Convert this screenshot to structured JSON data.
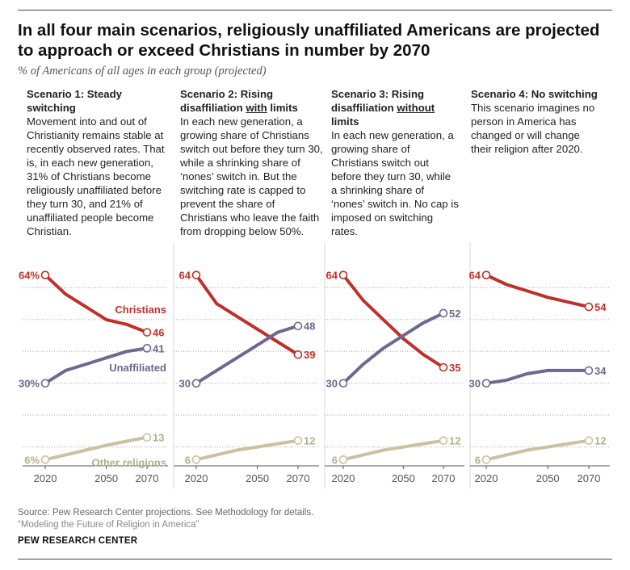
{
  "title": "In all four main scenarios, religiously unaffiliated Americans are projected to approach or exceed Christians in number by 2070",
  "subtitle": "% of Americans of all ages in each group (projected)",
  "scenarios": [
    {
      "heading": "Scenario 1: Steady switching",
      "body": "Movement into and out of Christianity remains stable at recently observed rates. That is, in each new generation, 31% of Christians become religiously unaffiliated before they turn 30, and 21% of unaffiliated people become Christian."
    },
    {
      "heading_pre": "Scenario 2: Rising disaffiliation ",
      "heading_u": "with",
      "heading_post": " limits",
      "body": "In each new generation, a growing share of Christians switch out before they turn 30, while a shrinking share of ‘nones’ switch in. But the switching rate is capped to prevent the share of Christians who leave the faith from dropping below 50%."
    },
    {
      "heading_pre": "Scenario 3: Rising disaffiliation ",
      "heading_u": "without",
      "heading_post": " limits",
      "body": "In each new generation, a growing share of Christians switch out before they turn 30, while a shrinking share of ‘nones’ switch in. No cap is imposed on switching rates."
    },
    {
      "heading": "Scenario 4: No switching",
      "body": "This scenario imagines no person in America has changed or will change their religion after 2020."
    }
  ],
  "colors": {
    "christians": "#be312b",
    "unaffiliated": "#6e6790",
    "other": "#c9c1a0",
    "grid": "#a8a8a8",
    "axis": "#555555",
    "other_label": "#b5ad8a"
  },
  "chart_data": [
    {
      "type": "line",
      "ylim": [
        0,
        70
      ],
      "x": [
        2020,
        2030,
        2040,
        2050,
        2060,
        2070
      ],
      "xticks": [
        "2020",
        "2050",
        "2070"
      ],
      "grid": "dotted horizontal",
      "series": [
        {
          "name": "Christians",
          "values": [
            64,
            58,
            54,
            50,
            48.5,
            46
          ],
          "start_label": "64%",
          "end_label": "46"
        },
        {
          "name": "Unaffiliated",
          "values": [
            30,
            34,
            36,
            38,
            40,
            41
          ],
          "start_label": "30%",
          "end_label": "41"
        },
        {
          "name": "Other religions",
          "values": [
            6,
            7.5,
            9,
            10.5,
            11.8,
            13
          ],
          "start_label": "6%",
          "end_label": "13"
        }
      ]
    },
    {
      "type": "line",
      "ylim": [
        0,
        70
      ],
      "x": [
        2020,
        2030,
        2040,
        2050,
        2060,
        2070
      ],
      "xticks": [
        "2020",
        "2050",
        "2070"
      ],
      "grid": "dotted horizontal",
      "series": [
        {
          "values": [
            64,
            55,
            51,
            47,
            43,
            39
          ],
          "start_label": "64",
          "end_label": "39"
        },
        {
          "values": [
            30,
            34,
            38,
            42,
            46,
            48
          ],
          "start_label": "30",
          "end_label": "48"
        },
        {
          "values": [
            6,
            7.5,
            9,
            10,
            11,
            12
          ],
          "start_label": "6",
          "end_label": "12"
        }
      ]
    },
    {
      "type": "line",
      "ylim": [
        0,
        70
      ],
      "x": [
        2020,
        2030,
        2040,
        2050,
        2060,
        2070
      ],
      "xticks": [
        "2020",
        "2050",
        "2070"
      ],
      "grid": "dotted horizontal",
      "series": [
        {
          "values": [
            64,
            56,
            50,
            44,
            39,
            35
          ],
          "start_label": "64",
          "end_label": "35"
        },
        {
          "values": [
            30,
            36,
            41,
            45,
            49,
            52
          ],
          "start_label": "30",
          "end_label": "52"
        },
        {
          "values": [
            6,
            7.5,
            9,
            10,
            11,
            12
          ],
          "start_label": "6",
          "end_label": "12"
        }
      ]
    },
    {
      "type": "line",
      "ylim": [
        0,
        70
      ],
      "x": [
        2020,
        2030,
        2040,
        2050,
        2060,
        2070
      ],
      "xticks": [
        "2020",
        "2050",
        "2070"
      ],
      "grid": "dotted horizontal",
      "series": [
        {
          "values": [
            64,
            61,
            59,
            57,
            55.5,
            54
          ],
          "start_label": "64",
          "end_label": "54"
        },
        {
          "values": [
            30,
            31,
            33,
            34,
            34,
            34
          ],
          "start_label": "30",
          "end_label": "34"
        },
        {
          "values": [
            6,
            7.5,
            9,
            10,
            11,
            12
          ],
          "start_label": "6",
          "end_label": "12"
        }
      ]
    }
  ],
  "series_labels": {
    "christians": "Christians",
    "unaffiliated": "Unaffiliated",
    "other": "Other religions"
  },
  "source": "Source: Pew Research Center projections. See Methodology for details.",
  "report": "“Modeling the Future of Religion in America”",
  "org": "PEW RESEARCH CENTER"
}
